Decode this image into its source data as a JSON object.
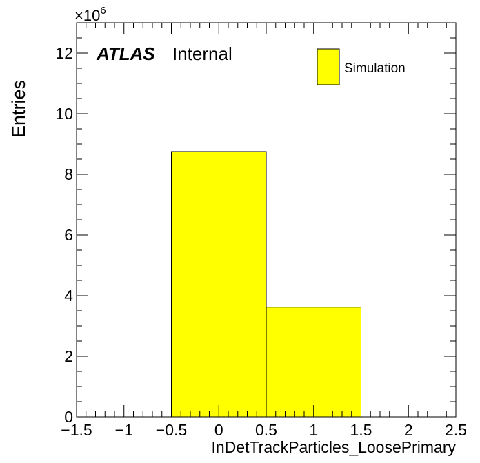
{
  "chart_data": {
    "type": "bar",
    "histogram": true,
    "xlabel": "InDetTrackParticles_LoosePrimary",
    "ylabel": "Entries",
    "y_exponent_label": "×10",
    "y_exponent_power": "6",
    "xlim": [
      -1.5,
      2.5
    ],
    "ylim": [
      0,
      13
    ],
    "x_ticks": [
      -1.5,
      -1,
      -0.5,
      0,
      0.5,
      1,
      1.5,
      2,
      2.5
    ],
    "x_tick_labels": [
      "−1.5",
      "−1",
      "−0.5",
      "0",
      "0.5",
      "1",
      "1.5",
      "2",
      "2.5"
    ],
    "y_ticks": [
      0,
      2,
      4,
      6,
      8,
      10,
      12
    ],
    "y_tick_labels": [
      "0",
      "2",
      "4",
      "6",
      "8",
      "10",
      "12"
    ],
    "grid": false,
    "legend_position": "top-right",
    "series": [
      {
        "name": "Simulation",
        "color": "#ffff00",
        "bins": [
          {
            "low": -0.5,
            "high": 0.5,
            "value": 8.75
          },
          {
            "low": 0.5,
            "high": 1.5,
            "value": 3.62
          }
        ]
      }
    ],
    "annotations": {
      "experiment": "ATLAS",
      "status": "Internal"
    }
  }
}
